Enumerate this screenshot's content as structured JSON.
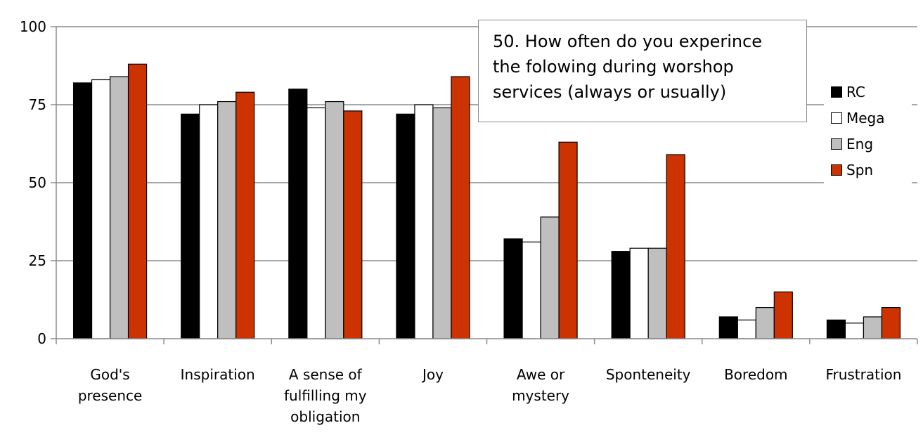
{
  "chart_data": {
    "type": "bar",
    "title_lines": [
      "50. How often do you experince",
      "the folowing during worshop",
      "services (always or usually)"
    ],
    "categories": [
      [
        "God's",
        "presence"
      ],
      [
        "Inspiration"
      ],
      [
        "A sense of",
        "fulfilling my",
        "obligation"
      ],
      [
        "Joy"
      ],
      [
        "Awe or",
        "mystery"
      ],
      [
        "Sponteneity"
      ],
      [
        "Boredom"
      ],
      [
        "Frustration"
      ]
    ],
    "series": [
      {
        "name": "RC",
        "color": "#000000",
        "values": [
          82,
          72,
          80,
          72,
          32,
          28,
          7,
          6
        ]
      },
      {
        "name": "Mega",
        "color": "#ffffff",
        "values": [
          83,
          75,
          74,
          75,
          31,
          29,
          6,
          5
        ]
      },
      {
        "name": "Eng",
        "color": "#bfbfbf",
        "values": [
          84,
          76,
          76,
          74,
          39,
          29,
          10,
          7
        ]
      },
      {
        "name": "Spn",
        "color": "#cc3300",
        "values": [
          88,
          79,
          73,
          84,
          63,
          59,
          15,
          10
        ]
      }
    ],
    "ylim": [
      0,
      100
    ],
    "yticks": [
      0,
      25,
      50,
      75,
      100
    ],
    "gridlines": true,
    "legend_position": "right"
  }
}
